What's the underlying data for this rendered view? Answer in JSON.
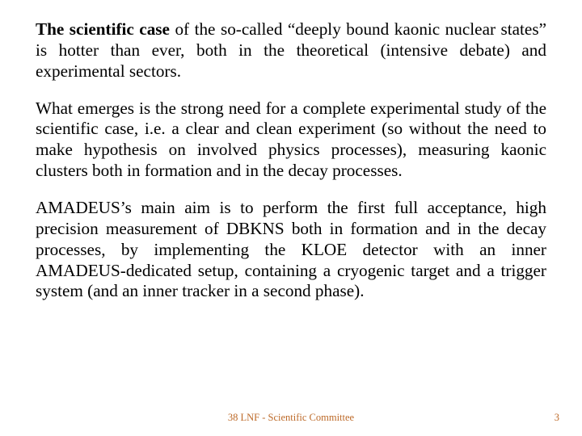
{
  "colors": {
    "background": "#ffffff",
    "body_text": "#000000",
    "footer_text": "#bd6a29"
  },
  "typography": {
    "body_font": "Palatino Linotype, Book Antiqua, Palatino, Georgia, serif",
    "body_fontsize_pt": 16,
    "body_line_height": 1.22,
    "footer_fontsize_pt": 9.5,
    "alignment": "justify"
  },
  "paragraphs": {
    "p1_lead": "The scientific case",
    "p1_rest": " of the so-called “deeply bound kaonic nuclear states” is hotter than ever, both in the theoretical (intensive debate) and experimental sectors.",
    "p2": "What emerges is the strong need for a complete experimental study of the scientific case, i.e. a clear and clean experiment (so without the need to make hypothesis on involved physics processes), measuring kaonic clusters both in formation and in the decay processes.",
    "p3": "AMADEUS’s main aim is to perform the first full acceptance, high precision measurement of DBKNS both in formation and in the decay processes, by implementing the KLOE detector with an inner AMADEUS-dedicated setup, containing a cryogenic target and a trigger system (and an inner tracker in a second phase)."
  },
  "footer": {
    "center": "38 LNF - Scientific Committee",
    "page_number": "3"
  }
}
